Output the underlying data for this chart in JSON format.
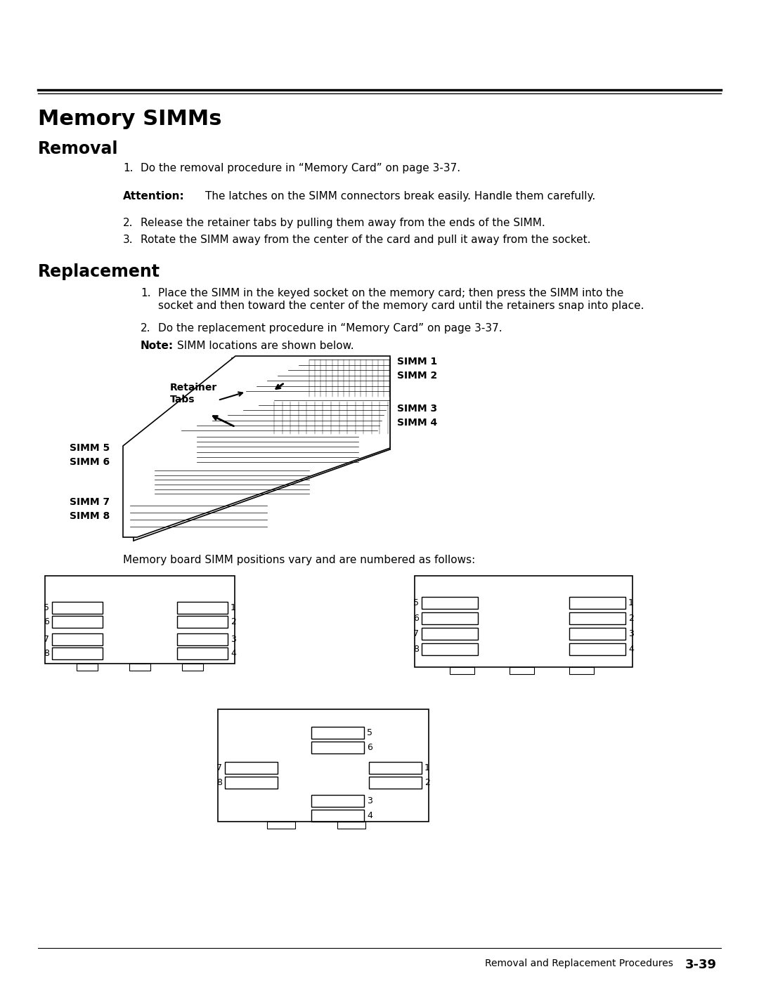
{
  "title": "Memory SIMMs",
  "section1": "Removal",
  "section2": "Replacement",
  "removal_items": [
    {
      "num": "1.",
      "text": "Do the removal procedure in “Memory Card” on page 3-37."
    },
    {
      "num": "Attention:",
      "text": " The latches on the SIMM connectors break easily. Handle them carefully.",
      "bold_prefix": true
    },
    {
      "num": "2.",
      "text": "Release the retainer tabs by pulling them away from the ends of the SIMM."
    },
    {
      "num": "3.",
      "text": "Rotate the SIMM away from the center of the card and pull it away from the socket."
    }
  ],
  "replacement_items": [
    {
      "num": "1.",
      "text": "Place the SIMM in the keyed socket on the memory card; then press the SIMM into the\nsocket and then toward the center of the memory card until the retainers snap into place."
    },
    {
      "num": "2.",
      "text": "Do the replacement procedure in “Memory Card” on page 3-37."
    },
    {
      "num": "Note:",
      "text": "  SIMM locations are shown below.",
      "bold_prefix": true
    }
  ],
  "memory_board_text": "Memory board SIMM positions vary and are numbered as follows:",
  "footer_left": "Removal and Replacement Procedures",
  "footer_right": "3-39",
  "bg_color": "#ffffff",
  "text_color": "#000000"
}
